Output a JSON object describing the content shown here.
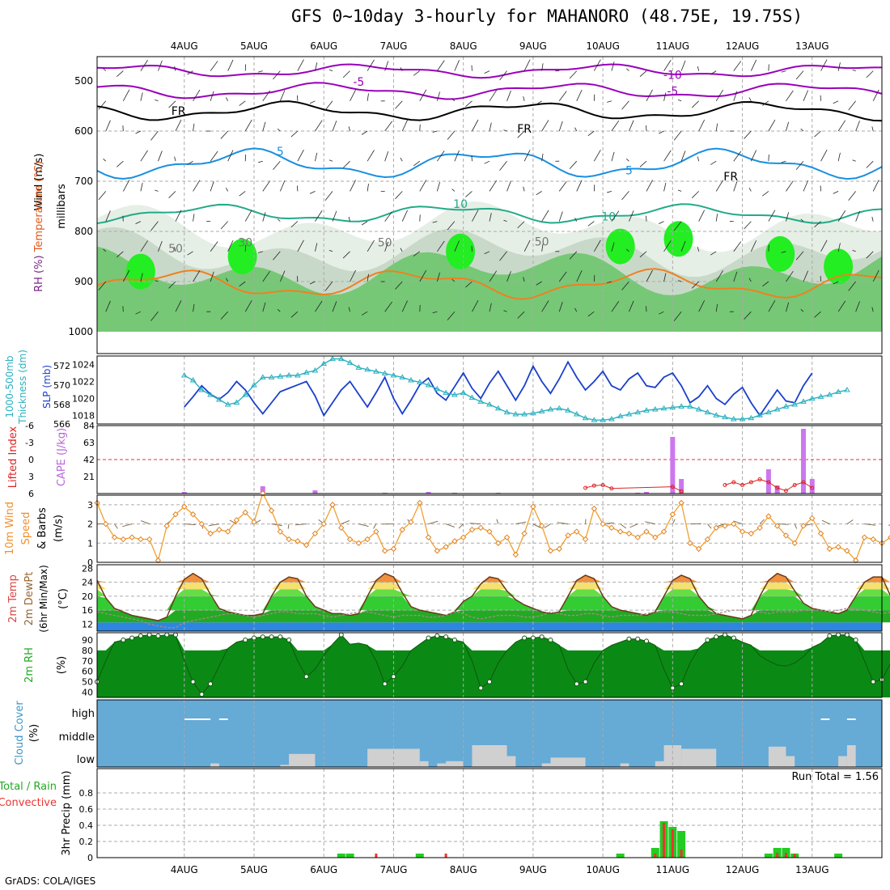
{
  "title": "GFS 0~10day 3-hourly for MAHANORO (48.75E, 19.75S)",
  "footer": "GrADS: COLA/IGES",
  "chart_data": [
    {
      "type": "heatmap",
      "panel": "upper-air",
      "labels": [
        "RH (%)",
        "Temperature (°C)",
        "Wind (m/s)"
      ],
      "ylabel": "millibars",
      "yticks": [
        500,
        600,
        700,
        800,
        900,
        1000
      ],
      "dates": [
        "4AUG",
        "5AUG",
        "6AUG",
        "7AUG",
        "8AUG",
        "9AUG",
        "10AUG",
        "11AUG",
        "12AUG",
        "13AUG"
      ],
      "contour_labels": [
        "-10",
        "-5",
        "-5",
        "FR",
        "FR",
        "FR",
        "5",
        "5",
        "10",
        "10",
        "30",
        "50",
        "50",
        "50"
      ]
    },
    {
      "type": "line",
      "panel": "sealevel",
      "labels": [
        "1000-500mb",
        "Thickness (dm)",
        "SLP (mb)"
      ],
      "thickness_ylim": [
        566,
        573
      ],
      "thickness_ticks": [
        566,
        568,
        570,
        572
      ],
      "slp_ylim": [
        1017,
        1025
      ],
      "slp_ticks": [
        1018,
        1020,
        1022,
        1024
      ],
      "slp": [
        1019.0,
        1020.2,
        1021.5,
        1020.5,
        1019.9,
        1020.7,
        1022.0,
        1021.0,
        1019.5,
        1018.2,
        1019.5,
        1020.8,
        1021.2,
        1021.6,
        1022.0,
        1020.3,
        1018.0,
        1019.5,
        1021.0,
        1022.0,
        1020.5,
        1019.0,
        1020.7,
        1022.5,
        1020.0,
        1018.2,
        1019.8,
        1021.6,
        1022.4,
        1020.6,
        1019.8,
        1021.4,
        1023.0,
        1021.2,
        1020.0,
        1021.8,
        1023.2,
        1021.5,
        1019.8,
        1021.5,
        1023.8,
        1022.0,
        1020.6,
        1022.3,
        1024.3,
        1022.5,
        1021.0,
        1022.0,
        1023.2,
        1021.5,
        1021.0,
        1022.3,
        1023.0,
        1021.5,
        1021.3,
        1022.5,
        1023.0,
        1021.5,
        1019.5,
        1020.2,
        1021.5,
        1020.0,
        1019.3,
        1020.5,
        1021.3,
        1019.5,
        1018.0,
        1019.5,
        1021.0,
        1019.7,
        1019.5,
        1021.5,
        1023.0
      ],
      "thickness": [
        571.0,
        570.5,
        569.5,
        569.0,
        568.5,
        568.0,
        568.2,
        569.0,
        570.0,
        570.8,
        570.8,
        570.9,
        571.0,
        571.0,
        571.3,
        571.5,
        572.2,
        572.7,
        572.7,
        572.3,
        571.8,
        571.6,
        571.4,
        571.2,
        571.0,
        570.8,
        570.5,
        570.3,
        570.0,
        569.6,
        569.2,
        569.0,
        569.2,
        568.7,
        568.3,
        568.0,
        567.6,
        567.2,
        567.0,
        567.0,
        567.1,
        567.3,
        567.5,
        567.6,
        567.4,
        567.0,
        566.6,
        566.4,
        566.4,
        566.5,
        566.8,
        567.0,
        567.2,
        567.4,
        567.5,
        567.6,
        567.7,
        567.8,
        567.8,
        567.5,
        567.2,
        566.9,
        566.7,
        566.5,
        566.5,
        566.6,
        566.9,
        567.2,
        567.5,
        567.8,
        568.0,
        568.3,
        568.6,
        568.8,
        569.0,
        569.3,
        569.5
      ]
    },
    {
      "type": "bar",
      "panel": "stability",
      "labels": [
        "Lifted Index",
        "CAPE (J/kg)"
      ],
      "li_ticks": [
        "-6",
        "-3",
        "0",
        "3",
        "6"
      ],
      "cape_ticks": [
        21,
        42,
        63,
        84
      ],
      "cape_ylim": [
        0,
        84
      ],
      "cape_bars": [
        {
          "t": 0.0,
          "v": 2
        },
        {
          "t": 27.0,
          "v": 9
        },
        {
          "t": 45.0,
          "v": 4
        },
        {
          "t": 69.0,
          "v": 1
        },
        {
          "t": 84.0,
          "v": 2
        },
        {
          "t": 93.0,
          "v": 1
        },
        {
          "t": 108.0,
          "v": 1
        },
        {
          "t": 156.0,
          "v": 1
        },
        {
          "t": 159.0,
          "v": 2
        },
        {
          "t": 168.0,
          "v": 70
        },
        {
          "t": 171.0,
          "v": 18
        },
        {
          "t": 201.0,
          "v": 30
        },
        {
          "t": 204.0,
          "v": 10
        },
        {
          "t": 213.0,
          "v": 80
        },
        {
          "t": 216.0,
          "v": 18
        }
      ],
      "li_points": [
        {
          "t": 186.0,
          "v": 4.5
        },
        {
          "t": 189.0,
          "v": 4.0
        },
        {
          "t": 192.0,
          "v": 4.5
        },
        {
          "t": 195.0,
          "v": 4.0
        },
        {
          "t": 198.0,
          "v": 3.5
        },
        {
          "t": 201.0,
          "v": 4.0
        },
        {
          "t": 204.0,
          "v": 5.0
        },
        {
          "t": 207.0,
          "v": 5.5
        },
        {
          "t": 210.0,
          "v": 4.5
        },
        {
          "t": 213.0,
          "v": 4.0
        },
        {
          "t": 216.0,
          "v": 5.0
        }
      ],
      "li_points_early": [
        {
          "t": 138.0,
          "v": 5.0
        },
        {
          "t": 141.0,
          "v": 4.6
        },
        {
          "t": 144.0,
          "v": 4.5
        },
        {
          "t": 147.0,
          "v": 5.1
        },
        {
          "t": 168.0,
          "v": 4.8
        },
        {
          "t": 171.0,
          "v": 5.6
        }
      ]
    },
    {
      "type": "line",
      "panel": "wind10m",
      "labels": [
        "10m Wind",
        "Speed",
        "& Barbs",
        "(m/s)"
      ],
      "ylim": [
        0,
        3.5
      ],
      "yticks": [
        0,
        1,
        2,
        3
      ],
      "speed": [
        3.1,
        2.0,
        1.3,
        1.2,
        1.3,
        1.2,
        1.2,
        0.1,
        1.9,
        2.5,
        2.9,
        2.5,
        2.0,
        1.5,
        1.7,
        1.6,
        2.2,
        2.6,
        2.1,
        3.6,
        2.7,
        1.6,
        1.2,
        1.1,
        0.9,
        1.5,
        2.0,
        3.0,
        1.8,
        1.2,
        1.0,
        1.2,
        1.6,
        0.6,
        0.7,
        1.7,
        2.1,
        3.1,
        1.3,
        0.6,
        0.8,
        1.1,
        1.3,
        1.7,
        1.8,
        1.6,
        1.0,
        1.3,
        0.4,
        1.5,
        2.9,
        1.9,
        0.6,
        0.7,
        1.4,
        1.6,
        1.2,
        2.8,
        2.0,
        1.8,
        1.6,
        1.5,
        1.3,
        1.6,
        1.3,
        1.6,
        2.5,
        3.1,
        1.0,
        0.7,
        1.2,
        1.8,
        1.9,
        2.0,
        1.6,
        1.5,
        1.8,
        2.4,
        1.9,
        1.4,
        1.0,
        1.9,
        2.3,
        1.5,
        0.7,
        0.8,
        0.6,
        0.1,
        1.3,
        1.2,
        1.0,
        1.3,
        3.0,
        3.1,
        1.8,
        1.3,
        1.7,
        1.8,
        1.3,
        1.1,
        1.6,
        2.3,
        1.4,
        0.7,
        1.4,
        0.5,
        0.9,
        0.6,
        1.6,
        1.2,
        1.8,
        1.7,
        2.6,
        3.0,
        1.7,
        1.1,
        0.8,
        1.2,
        0.8,
        1.2,
        0.6,
        1.4,
        1.6
      ]
    },
    {
      "type": "area",
      "panel": "temperature",
      "labels": [
        "2m Temp",
        "2m DewPt",
        "(6hr Min/Max)",
        "(°C)"
      ],
      "ylim": [
        10,
        29
      ],
      "yticks": [
        12,
        16,
        20,
        24,
        28
      ],
      "temp": [
        24.5,
        19.5,
        16.5,
        15.5,
        14.5,
        14.0,
        13.5,
        13.0,
        14.0,
        20.0,
        24.8,
        26.5,
        25.0,
        20.5,
        16.5,
        15.5,
        15.0,
        14.5,
        14.5,
        15.0,
        20.0,
        24.0,
        25.5,
        25.0,
        20.0,
        17.0,
        16.0,
        15.0,
        15.0,
        14.5,
        15.0,
        20.0,
        24.5,
        26.5,
        25.5,
        21.0,
        17.0,
        16.0,
        15.5,
        15.0,
        14.5,
        15.5,
        18.5,
        20.0,
        23.5,
        25.5,
        25.0,
        21.5,
        19.0,
        17.5,
        16.5,
        15.5,
        15.0,
        15.5,
        20.0,
        24.5,
        26.0,
        25.0,
        20.0,
        17.0,
        16.0,
        15.5,
        15.0,
        14.5,
        15.5,
        20.0,
        24.5,
        26.0,
        25.0,
        20.0,
        17.0,
        15.0,
        14.5,
        14.0,
        13.5,
        14.5,
        20.0,
        24.5,
        26.5,
        25.5,
        21.5,
        18.0,
        16.5,
        16.0,
        15.5,
        15.0,
        16.0,
        20.0,
        24.0,
        25.5,
        25.5,
        20.0,
        16.5,
        15.5,
        15.0,
        14.5,
        14.0,
        15.0,
        20.0,
        24.0,
        25.5,
        25.5,
        20.5,
        17.0,
        16.5,
        16.0,
        15.0,
        14.5,
        15.0,
        20.0,
        24.0,
        26.5,
        25.5,
        21.0,
        17.0,
        16.0,
        15.5,
        15.0,
        16.0,
        24.0
      ],
      "dewpt": [
        15.5,
        15.0,
        14.5,
        14.0,
        13.5,
        13.0,
        12.0,
        11.5,
        11.0,
        11.0,
        12.5,
        13.0,
        13.5,
        14.0,
        14.5,
        15.0,
        15.0,
        14.5,
        14.0,
        14.5,
        15.0,
        15.5,
        15.5,
        15.0,
        15.0,
        15.0,
        14.5,
        14.0,
        14.5,
        15.0,
        15.5,
        15.5,
        15.0,
        14.5,
        14.0,
        14.5,
        14.5,
        14.5,
        14.0,
        14.0,
        14.5,
        15.5,
        15.0,
        14.0,
        13.5,
        14.0,
        14.5,
        14.5,
        14.5,
        14.0,
        14.0,
        14.5,
        15.5,
        15.0,
        14.5,
        14.5,
        15.0,
        15.0,
        14.5,
        14.0,
        14.5,
        14.5,
        14.5,
        15.0,
        15.5,
        15.5,
        15.5,
        15.0,
        14.5,
        14.5,
        14.5,
        15.0,
        15.5,
        16.0,
        16.0,
        16.0,
        15.5,
        15.0,
        15.5,
        15.5,
        15.5,
        16.0,
        16.0,
        16.0,
        15.5,
        16.0,
        16.5,
        16.5,
        16.0,
        15.5,
        15.0,
        15.5,
        16.0,
        16.5,
        17.0,
        16.5,
        16.0,
        16.0,
        16.0,
        16.5,
        17.0,
        17.0,
        17.0,
        16.0,
        15.5,
        15.5,
        16.5,
        17.0,
        16.5,
        15.5,
        15.5,
        16.0,
        16.5,
        17.0,
        16.5,
        15.5
      ]
    },
    {
      "type": "area",
      "panel": "rh2m",
      "labels": [
        "2m RH",
        "(%)"
      ],
      "ylim": [
        35,
        97
      ],
      "yticks": [
        40,
        50,
        60,
        70,
        80,
        90
      ],
      "rh": [
        50,
        70,
        88,
        90,
        92,
        94,
        95,
        94,
        95,
        95,
        70,
        50,
        38,
        48,
        65,
        82,
        88,
        90,
        92,
        93,
        93,
        93,
        90,
        70,
        55,
        62,
        75,
        86,
        95,
        86,
        87,
        85,
        70,
        48,
        55,
        65,
        80,
        86,
        92,
        94,
        93,
        90,
        88,
        70,
        44,
        50,
        68,
        80,
        88,
        92,
        92,
        93,
        90,
        85,
        62,
        48,
        50,
        68,
        80,
        85,
        88,
        91,
        91,
        89,
        85,
        62,
        44,
        48,
        68,
        82,
        90,
        93,
        95,
        92,
        88,
        85,
        75,
        70,
        66,
        65,
        68,
        74,
        83,
        87,
        94,
        95,
        95,
        90,
        70,
        50,
        52,
        68,
        82,
        88,
        90,
        92,
        89,
        88,
        90,
        87,
        62,
        52,
        55,
        70,
        82,
        88,
        93,
        91,
        87,
        90,
        53
      ],
      "labels_note": ""
    },
    {
      "type": "bar",
      "panel": "cloud",
      "labels": [
        "Cloud Cover",
        "(%)"
      ],
      "levels": [
        "high",
        "middle",
        "low"
      ],
      "low": [
        0,
        0,
        0,
        0,
        0,
        0,
        5,
        5,
        0,
        0,
        0,
        0,
        0,
        0,
        15,
        15,
        20,
        20,
        0,
        0,
        0,
        0,
        0,
        0,
        0,
        0,
        20,
        25,
        30,
        30,
        30,
        20,
        20,
        10,
        10,
        0,
        0,
        5,
        5,
        10,
        10,
        0,
        0,
        5,
        5,
        25,
        30,
        30,
        30,
        20,
        20,
        0,
        0,
        0,
        0,
        0,
        0,
        5,
        5,
        5,
        10,
        10,
        15,
        15,
        15,
        20,
        20,
        15,
        15,
        0,
        0,
        0,
        0,
        0,
        0,
        0,
        0,
        0,
        0,
        0,
        0,
        0,
        0,
        0,
        0,
        0,
        0,
        0,
        0,
        0,
        0,
        0,
        0,
        0,
        0,
        0,
        0,
        0,
        0,
        0,
        0,
        0,
        5,
        5,
        5,
        0,
        0,
        0,
        0,
        0,
        0,
        0,
        0,
        0,
        0,
        0,
        0,
        0,
        0,
        0,
        0,
        0,
        5,
        5,
        5,
        0
      ],
      "low2": [
        0,
        0,
        0,
        0,
        0,
        0,
        0,
        0,
        0,
        0,
        0,
        0,
        0,
        0,
        0,
        0,
        0,
        0,
        0,
        0,
        0,
        0,
        0,
        0,
        0,
        0,
        0,
        0,
        0,
        0,
        0,
        0,
        0,
        0,
        0,
        0,
        0,
        0,
        0,
        0,
        0,
        0,
        0,
        0,
        0,
        0,
        0,
        0,
        0,
        0,
        0,
        0,
        0,
        0,
        0,
        0,
        0,
        0,
        0,
        0,
        0,
        0,
        0,
        0,
        0,
        0,
        0,
        0,
        0,
        0,
        0,
        0,
        0,
        0,
        0,
        0,
        0,
        0,
        0,
        0,
        0,
        0,
        0,
        0,
        0,
        0,
        0,
        0,
        0,
        0,
        0,
        0,
        0,
        0,
        0,
        0,
        0,
        0,
        0,
        0,
        0,
        0,
        0,
        0,
        0,
        0,
        0,
        0,
        0,
        0,
        0,
        0,
        0,
        0,
        0,
        0,
        0,
        0,
        0,
        0,
        0,
        0,
        0,
        0,
        0,
        0
      ],
      "low_segments": [
        {
          "t0": 9,
          "t1": 12,
          "v": 5
        },
        {
          "t0": 33,
          "t1": 36,
          "v": 3
        },
        {
          "t0": 36,
          "t1": 45,
          "v": 18
        },
        {
          "t0": 63,
          "t1": 81,
          "v": 25
        },
        {
          "t0": 81,
          "t1": 84,
          "v": 8
        },
        {
          "t0": 87,
          "t1": 90,
          "v": 5
        },
        {
          "t0": 90,
          "t1": 96,
          "v": 8
        },
        {
          "t0": 99,
          "t1": 111,
          "v": 30
        },
        {
          "t0": 111,
          "t1": 114,
          "v": 15
        },
        {
          "t0": 123,
          "t1": 126,
          "v": 5
        },
        {
          "t0": 126,
          "t1": 138,
          "v": 13
        },
        {
          "t0": 150,
          "t1": 153,
          "v": 5
        },
        {
          "t0": 162,
          "t1": 165,
          "v": 8
        },
        {
          "t0": 165,
          "t1": 171,
          "v": 30
        },
        {
          "t0": 171,
          "t1": 183,
          "v": 25
        },
        {
          "t0": 201,
          "t1": 207,
          "v": 28
        },
        {
          "t0": 207,
          "t1": 210,
          "v": 15
        },
        {
          "t0": 225,
          "t1": 228,
          "v": 15
        },
        {
          "t0": 228,
          "t1": 231,
          "v": 30
        }
      ],
      "high_segments": [
        {
          "t0": 0,
          "t1": 9,
          "v": 1
        },
        {
          "t0": 12,
          "t1": 15,
          "v": 1
        },
        {
          "t0": 219,
          "t1": 222,
          "v": 1
        },
        {
          "t0": 228,
          "t1": 231,
          "v": 1
        }
      ]
    },
    {
      "type": "bar",
      "panel": "precip",
      "labels": [
        "Total / Rain",
        "Convective",
        "3hr Precip (mm)"
      ],
      "ylim": [
        0,
        1.0
      ],
      "yticks": [
        0,
        0.2,
        0.4,
        0.6,
        0.8
      ],
      "run_total_label": "Run Total = 1.56",
      "bars": [
        {
          "t": 54,
          "total": 0.05,
          "conv": 0.0
        },
        {
          "t": 57,
          "total": 0.05,
          "conv": 0.0
        },
        {
          "t": 66,
          "total": 0.0,
          "conv": 0.05
        },
        {
          "t": 81,
          "total": 0.05,
          "conv": 0.0
        },
        {
          "t": 90,
          "total": 0.0,
          "conv": 0.05
        },
        {
          "t": 150,
          "total": 0.05,
          "conv": 0.0
        },
        {
          "t": 162,
          "total": 0.12,
          "conv": 0.05
        },
        {
          "t": 165,
          "total": 0.45,
          "conv": 0.43
        },
        {
          "t": 168,
          "total": 0.38,
          "conv": 0.35
        },
        {
          "t": 171,
          "total": 0.33,
          "conv": 0.1
        },
        {
          "t": 201,
          "total": 0.05,
          "conv": 0.0
        },
        {
          "t": 204,
          "total": 0.12,
          "conv": 0.06
        },
        {
          "t": 207,
          "total": 0.12,
          "conv": 0.06
        },
        {
          "t": 210,
          "total": 0.05,
          "conv": 0.05
        },
        {
          "t": 225,
          "total": 0.05,
          "conv": 0.0
        }
      ]
    }
  ]
}
